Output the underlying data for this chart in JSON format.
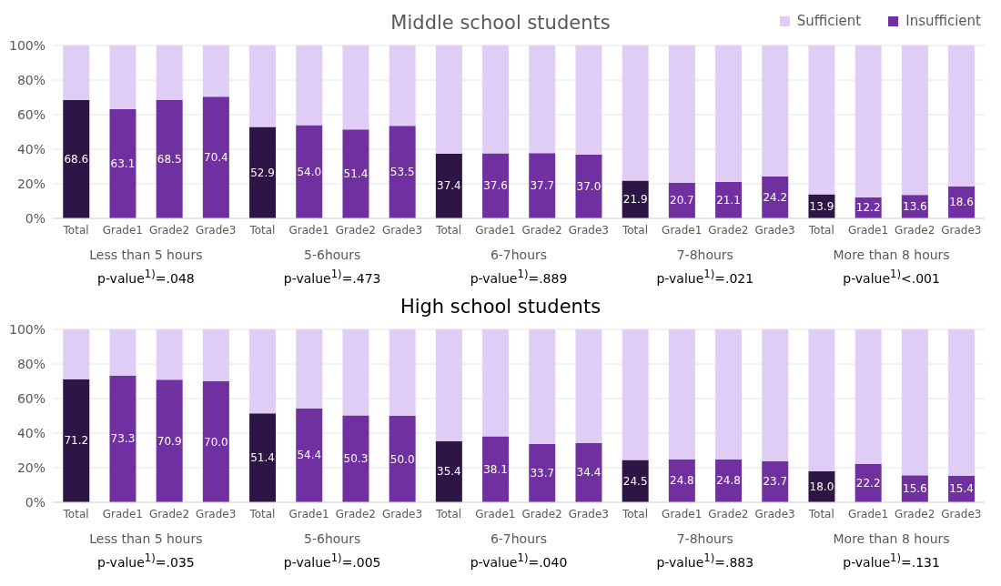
{
  "chart_data": [
    {
      "type": "bar",
      "title": "Middle school students",
      "stacked": true,
      "grid": "y",
      "legend": "top right",
      "categories": [
        "Total",
        "Grade1",
        "Grade2",
        "Grade3",
        "Total",
        "Grade1",
        "Grade2",
        "Grade3",
        "Total",
        "Grade1",
        "Grade2",
        "Grade3",
        "Total",
        "Grade1",
        "Grade2",
        "Grade3",
        "Total",
        "Grade1",
        "Grade2",
        "Grade3"
      ],
      "ylim": [
        0,
        100
      ],
      "yticks": [
        {
          "value": 0,
          "label": "0%"
        },
        {
          "value": 20,
          "label": "20%"
        },
        {
          "value": 40,
          "label": "40%"
        },
        {
          "value": 60,
          "label": "60%"
        },
        {
          "value": 80,
          "label": "80%"
        },
        {
          "value": 100,
          "label": "100%"
        }
      ],
      "series": [
        {
          "name": "Insufficient",
          "color": "#7030a0",
          "colors": [
            "#2d1545",
            "#7030a0",
            "#7030a0",
            "#7030a0",
            "#2d1545",
            "#7030a0",
            "#7030a0",
            "#7030a0",
            "#2d1545",
            "#7030a0",
            "#7030a0",
            "#7030a0",
            "#2d1545",
            "#7030a0",
            "#7030a0",
            "#7030a0",
            "#2d1545",
            "#7030a0",
            "#7030a0",
            "#7030a0"
          ],
          "values": [
            68.6,
            63.1,
            68.5,
            70.4,
            52.9,
            54.0,
            51.4,
            53.5,
            37.4,
            37.6,
            37.7,
            37.0,
            21.9,
            20.7,
            21.1,
            24.2,
            13.9,
            12.2,
            13.6,
            18.6
          ],
          "value_labels": [
            "68.6",
            "63.1",
            "68.5",
            "70.4",
            "52.9",
            "54.0",
            "51.4",
            "53.5",
            "37.4",
            "37.6",
            "37.7",
            "37.0",
            "21.9",
            "20.7",
            "21.1",
            "24.2",
            "13.9",
            "12.2",
            "13.6",
            "18.6"
          ]
        },
        {
          "name": "Sufficient",
          "color": "#e0cdf6",
          "values": [
            31.4,
            36.9,
            31.5,
            29.6,
            47.1,
            46.0,
            48.6,
            46.5,
            62.6,
            62.4,
            62.3,
            63.0,
            78.1,
            79.3,
            78.9,
            75.8,
            86.1,
            87.8,
            86.4,
            81.4
          ]
        }
      ],
      "annotations": [
        "Less than 5 hours",
        "p-value$^{1)}$=.048",
        "5-6hours",
        "p-value$^{1)}$=.473",
        "6-7hours",
        "p-value$^{1)}$=.889",
        "7-8hours",
        "p-value$^{1)}$=.021",
        "More than 8 hours",
        "p-value$^{1)}$<.001"
      ]
    },
    {
      "type": "bar",
      "title": "High school students",
      "stacked": true,
      "grid": "y",
      "categories": [
        "Total",
        "Grade1",
        "Grade2",
        "Grade3",
        "Total",
        "Grade1",
        "Grade2",
        "Grade3",
        "Total",
        "Grade1",
        "Grade2",
        "Grade3",
        "Total",
        "Grade1",
        "Grade2",
        "Grade3",
        "Total",
        "Grade1",
        "Grade2",
        "Grade3"
      ],
      "ylim": [
        0,
        100
      ],
      "yticks": [
        {
          "value": 0,
          "label": "0%"
        },
        {
          "value": 20,
          "label": "20%"
        },
        {
          "value": 40,
          "label": "40%"
        },
        {
          "value": 60,
          "label": "60%"
        },
        {
          "value": 80,
          "label": "80%"
        },
        {
          "value": 100,
          "label": "100%"
        }
      ],
      "series": [
        {
          "color": "#7030a0",
          "colors": [
            "#2d1545",
            "#7030a0",
            "#7030a0",
            "#7030a0",
            "#2d1545",
            "#7030a0",
            "#7030a0",
            "#7030a0",
            "#2d1545",
            "#7030a0",
            "#7030a0",
            "#7030a0",
            "#2d1545",
            "#7030a0",
            "#7030a0",
            "#7030a0",
            "#2d1545",
            "#7030a0",
            "#7030a0",
            "#7030a0"
          ],
          "values": [
            71.2,
            73.3,
            70.9,
            70.0,
            51.4,
            54.4,
            50.3,
            50.0,
            35.4,
            38.1,
            33.7,
            34.4,
            24.5,
            24.8,
            24.8,
            23.7,
            18.0,
            22.2,
            15.6,
            15.4
          ],
          "value_labels": [
            "71.2",
            "73.3",
            "70.9",
            "70.0",
            "51.4",
            "54.4",
            "50.3",
            "50.0",
            "35.4",
            "38.1",
            "33.7",
            "34.4",
            "24.5",
            "24.8",
            "24.8",
            "23.7",
            "18.0",
            "22.2",
            "15.6",
            "15.4"
          ]
        },
        {
          "color": "#e0cdf6",
          "values": [
            28.8,
            26.7,
            29.1,
            30.0,
            48.6,
            45.6,
            49.7,
            50.0,
            64.6,
            61.9,
            66.3,
            65.6,
            75.5,
            75.2,
            75.2,
            76.3,
            82.0,
            77.8,
            84.4,
            84.6
          ]
        }
      ],
      "annotations": [
        "Less than 5 hours",
        "p-value$^{1)}$=.035",
        "5-6hours",
        "p-value$^{1)}$=.005",
        "6-7hours",
        "p-value$^{1)}$=.040",
        "7-8hours",
        "p-value$^{1)}$=.883",
        "More than 8 hours",
        "p-value$^{1)}$=.131"
      ]
    }
  ]
}
